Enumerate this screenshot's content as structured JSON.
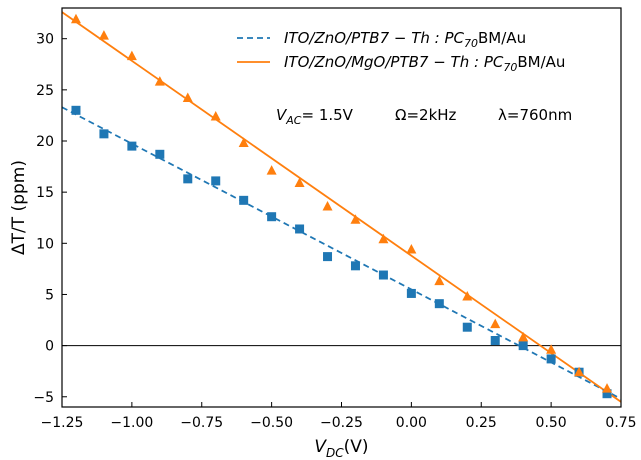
{
  "chart_data": {
    "type": "scatter",
    "title": "",
    "xlabel": "V_DC(V)",
    "xlabel_main": "V",
    "xlabel_sub": "DC",
    "xlabel_tail": "(V)",
    "ylabel": "ΔT/T (ppm)",
    "xlim": [
      -1.25,
      0.75
    ],
    "ylim": [
      -6,
      33
    ],
    "xticks": [
      -1.25,
      -1.0,
      -0.75,
      -0.5,
      -0.25,
      0.0,
      0.25,
      0.5,
      0.75
    ],
    "xtick_labels": [
      "−1.25",
      "−1.00",
      "−0.75",
      "−0.50",
      "−0.25",
      "0.00",
      "0.25",
      "0.50",
      "0.75"
    ],
    "yticks": [
      -5,
      0,
      5,
      10,
      15,
      20,
      25,
      30
    ],
    "ytick_labels": [
      "−5",
      "0",
      "5",
      "10",
      "15",
      "20",
      "25",
      "30"
    ],
    "zero_line": 0,
    "grid": false,
    "legend_position": "top-right",
    "series": [
      {
        "name": "ITO/ZnO/PTB7−Th:PC70BM/Au",
        "legend_main": "ITO/ZnO/PTB7 − Th : PC",
        "legend_sub": "70",
        "legend_tail": "BM/Au",
        "color": "#1f77b4",
        "marker": "square",
        "line_style": "dashed",
        "x": [
          -1.2,
          -1.1,
          -1.0,
          -0.9,
          -0.8,
          -0.7,
          -0.6,
          -0.5,
          -0.4,
          -0.3,
          -0.2,
          -0.1,
          0.0,
          0.1,
          0.2,
          0.3,
          0.4,
          0.5,
          0.6,
          0.7
        ],
        "y": [
          23.0,
          20.7,
          19.5,
          18.7,
          16.3,
          16.1,
          14.2,
          12.6,
          11.4,
          8.7,
          7.8,
          6.9,
          5.1,
          4.1,
          1.8,
          0.5,
          0.0,
          -1.3,
          -2.6,
          -4.7
        ],
        "fit": {
          "x": [
            -1.25,
            0.75
          ],
          "y": [
            23.3,
            -5.2
          ]
        }
      },
      {
        "name": "ITO/ZnO/MgO/PTB7−Th:PC70BM/Au",
        "legend_main": "ITO/ZnO/MgO/PTB7 − Th : PC",
        "legend_sub": "70",
        "legend_tail": "BM/Au",
        "color": "#ff7f0e",
        "marker": "triangle",
        "line_style": "solid",
        "x": [
          -1.2,
          -1.1,
          -1.0,
          -0.9,
          -0.8,
          -0.7,
          -0.6,
          -0.5,
          -0.4,
          -0.3,
          -0.2,
          -0.1,
          0.0,
          0.1,
          0.2,
          0.3,
          0.4,
          0.5,
          0.6,
          0.7
        ],
        "y": [
          31.9,
          30.3,
          28.3,
          25.8,
          24.2,
          22.4,
          19.8,
          17.1,
          15.9,
          13.6,
          12.3,
          10.4,
          9.4,
          6.3,
          4.8,
          2.1,
          0.8,
          -0.4,
          -2.6,
          -4.2
        ],
        "fit": {
          "x": [
            -1.25,
            0.75
          ],
          "y": [
            32.6,
            -5.5
          ]
        }
      }
    ],
    "annotations": [
      {
        "key": "vac",
        "main": "V",
        "sub": "AC",
        "tail": "= 1.5V"
      },
      {
        "key": "omega",
        "text": "Ω=2kHz"
      },
      {
        "key": "lambda",
        "text": "λ=760nm"
      }
    ]
  }
}
